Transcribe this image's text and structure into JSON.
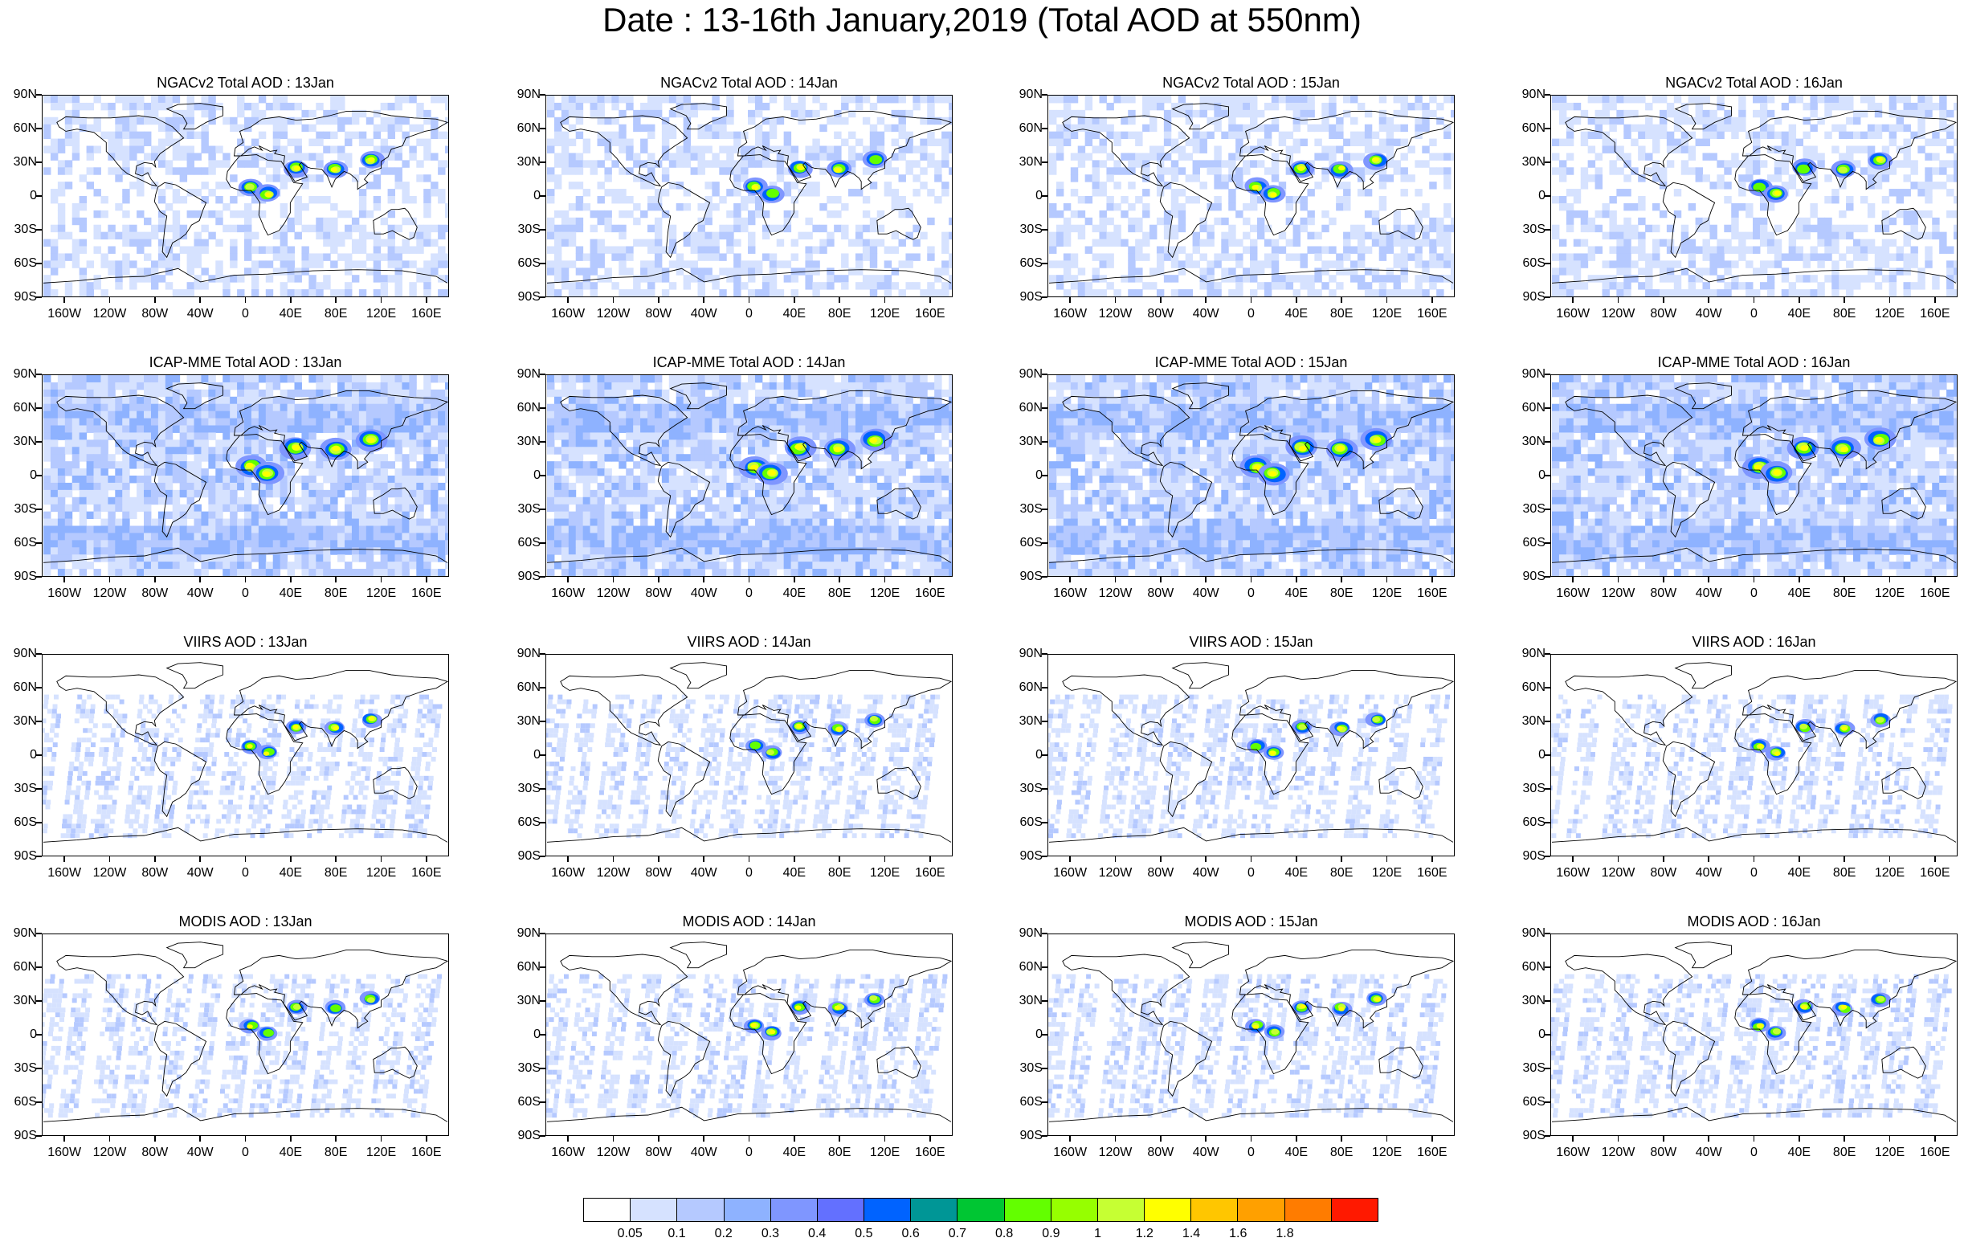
{
  "title": "Date : 13-16th January,2019 (Total AOD at 550nm)",
  "lat_labels": [
    "90N",
    "60N",
    "30N",
    "0",
    "30S",
    "60S",
    "90S"
  ],
  "lon_labels": [
    "160W",
    "120W",
    "80W",
    "40W",
    "0",
    "40E",
    "80E",
    "120E",
    "160E"
  ],
  "lon_values": [
    -160,
    -120,
    -80,
    -40,
    0,
    40,
    80,
    120,
    160
  ],
  "lat_values": [
    90,
    60,
    30,
    0,
    -30,
    -60,
    -90
  ],
  "extent": {
    "lon_min": -180,
    "lon_max": 180,
    "lat_min": -90,
    "lat_max": 90
  },
  "panels": [
    {
      "title": "NGACv2 Total AOD : 13Jan",
      "model": "NGACv2",
      "day": 13
    },
    {
      "title": "NGACv2 Total AOD : 14Jan",
      "model": "NGACv2",
      "day": 14
    },
    {
      "title": "NGACv2 Total AOD : 15Jan",
      "model": "NGACv2",
      "day": 15
    },
    {
      "title": "NGACv2 Total AOD : 16Jan",
      "model": "NGACv2",
      "day": 16
    },
    {
      "title": "ICAP-MME Total AOD : 13Jan",
      "model": "ICAP-MME",
      "day": 13
    },
    {
      "title": "ICAP-MME Total AOD : 14Jan",
      "model": "ICAP-MME",
      "day": 14
    },
    {
      "title": "ICAP-MME Total AOD : 15Jan",
      "model": "ICAP-MME",
      "day": 15
    },
    {
      "title": "ICAP-MME Total AOD : 16Jan",
      "model": "ICAP-MME",
      "day": 16
    },
    {
      "title": "VIIRS AOD : 13Jan",
      "model": "VIIRS",
      "day": 13
    },
    {
      "title": "VIIRS AOD : 14Jan",
      "model": "VIIRS",
      "day": 14
    },
    {
      "title": "VIIRS AOD : 15Jan",
      "model": "VIIRS",
      "day": 15
    },
    {
      "title": "VIIRS AOD : 16Jan",
      "model": "VIIRS",
      "day": 16
    },
    {
      "title": "MODIS AOD : 13Jan",
      "model": "MODIS",
      "day": 13
    },
    {
      "title": "MODIS AOD : 14Jan",
      "model": "MODIS",
      "day": 14
    },
    {
      "title": "MODIS AOD : 15Jan",
      "model": "MODIS",
      "day": 15
    },
    {
      "title": "MODIS AOD : 16Jan",
      "model": "MODIS",
      "day": 16
    }
  ],
  "colorbar": {
    "levels": [
      "0.05",
      "0.1",
      "0.2",
      "0.3",
      "0.4",
      "0.5",
      "0.6",
      "0.7",
      "0.8",
      "0.9",
      "1",
      "1.2",
      "1.4",
      "1.6",
      "1.8"
    ],
    "colors": [
      "#ffffff",
      "#d6e2ff",
      "#b5c9ff",
      "#8eb2ff",
      "#7f96ff",
      "#6370ff",
      "#0063ff",
      "#009696",
      "#00c633",
      "#63ff00",
      "#96ff00",
      "#c6ff33",
      "#ffff00",
      "#ffc600",
      "#ffa000",
      "#ff7c00",
      "#ff1900"
    ]
  },
  "hotspots_lonlat": {
    "china": [
      112,
      32
    ],
    "india": [
      80,
      24
    ],
    "west_africa": [
      5,
      8
    ],
    "central_africa": [
      20,
      2
    ],
    "arabia": [
      45,
      25
    ]
  }
}
